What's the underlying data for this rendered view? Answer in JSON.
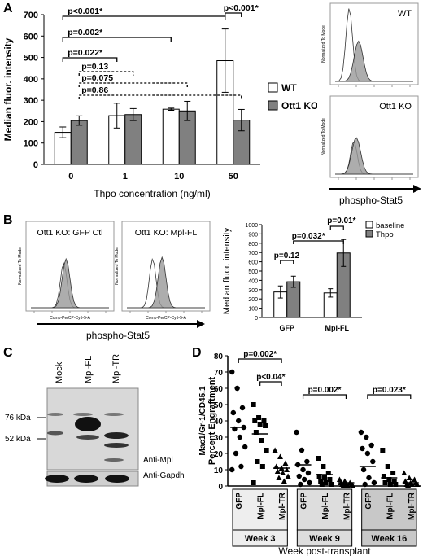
{
  "panels": {
    "A": {
      "letter": "A",
      "chart_data": {
        "type": "bar",
        "ylabel": "Median fluor. intensity",
        "xlabel": "Thpo concentration (ng/ml)",
        "categories": [
          "0",
          "1",
          "10",
          "50"
        ],
        "ylim": [
          0,
          700
        ],
        "yticks": [
          "0",
          "100",
          "200",
          "300",
          "400",
          "500",
          "600",
          "700"
        ],
        "series": [
          {
            "name": "WT",
            "color": "#ffffff",
            "values": [
              150,
              228,
              258,
              485
            ],
            "errors": [
              25,
              58,
              5,
              148
            ]
          },
          {
            "name": "Ott1 KO",
            "color": "#808080",
            "values": [
              205,
              233,
              250,
              207
            ],
            "errors": [
              22,
              28,
              45,
              50
            ]
          }
        ],
        "legend_position": "right",
        "annotations": [
          {
            "text": "p<0.001*",
            "from": "WT-0",
            "to": "WT-50",
            "style": "solid"
          },
          {
            "text": "p=0.002*",
            "from": "WT-0",
            "to": "WT-10",
            "style": "solid"
          },
          {
            "text": "p=0.022*",
            "from": "WT-0",
            "to": "WT-1",
            "style": "solid"
          },
          {
            "text": "p=0.13",
            "from": "KO-0",
            "to": "KO-1",
            "style": "dashed"
          },
          {
            "text": "p=0.075",
            "from": "KO-0",
            "to": "KO-10",
            "style": "dashed"
          },
          {
            "text": "p=0.86",
            "from": "KO-0",
            "to": "KO-50",
            "style": "dashed"
          },
          {
            "text": "p<0.001*",
            "from": "WT-50",
            "to": "KO-50",
            "style": "solid"
          }
        ]
      },
      "histograms": {
        "wt_label": "WT",
        "ko_label": "Ott1 KO",
        "axis_label": "phospho-Stat5",
        "y_axis_text": "Normalized To Mode"
      }
    },
    "B": {
      "letter": "B",
      "histograms": {
        "left_title": "Ott1 KO: GFP Ctl",
        "right_title": "Ott1 KO: Mpl-FL",
        "axis_label": "phospho-Stat5",
        "x_axis_text": "Comp-PerCP-Cy5-5-A",
        "y_axis_text": "Normalized To Mode"
      },
      "chart_data": {
        "type": "bar",
        "ylabel": "Median fluor. intensity",
        "categories": [
          "GFP",
          "Mpl-FL"
        ],
        "ylim": [
          0,
          1000
        ],
        "yticks": [
          "0",
          "100",
          "200",
          "300",
          "400",
          "500",
          "600",
          "700",
          "800",
          "900",
          "1000"
        ],
        "series": [
          {
            "name": "baseline",
            "color": "#ffffff",
            "values": [
              275,
              265
            ],
            "errors": [
              65,
              45
            ]
          },
          {
            "name": "Thpo",
            "color": "#808080",
            "values": [
              385,
              695
            ],
            "errors": [
              60,
              145
            ]
          }
        ],
        "legend_position": "top-right",
        "annotations": [
          {
            "text": "p=0.12",
            "group": "GFP"
          },
          {
            "text": "p=0.01*",
            "group": "Mpl-FL"
          },
          {
            "text": "p=0.032*",
            "from": "GFP-Thpo",
            "to": "Mpl-FL-Thpo"
          }
        ]
      }
    },
    "C": {
      "letter": "C",
      "lanes": [
        "Mock",
        "Mpl-FL",
        "Mpl-TR"
      ],
      "markers": [
        "76 kDa",
        "52 kDa"
      ],
      "blot_labels": [
        "Anti-Mpl",
        "Anti-Gapdh"
      ]
    },
    "D": {
      "letter": "D",
      "chart_data": {
        "type": "scatter",
        "ylabel_lines": [
          "Mac1/Gr-1/CD45.1",
          "Percent Engraftment"
        ],
        "xlabel": "Week post-transplant",
        "ylim": [
          0,
          80
        ],
        "yticks": [
          "0",
          "10",
          "20",
          "30",
          "40",
          "50",
          "60",
          "70",
          "80"
        ],
        "groups": [
          {
            "week": "Week 3",
            "categories": [
              "GFP",
              "Mpl-FL",
              "Mpl-TR"
            ],
            "points": [
              [
                70,
                60,
                48,
                45,
                40,
                36,
                35,
                30,
                24,
                20,
                12,
                10
              ],
              [
                50,
                42,
                40,
                40,
                38,
                37,
                33,
                28,
                22,
                15,
                12,
                2
              ],
              [
                22,
                18,
                14,
                12,
                11,
                10,
                9,
                8,
                6,
                5,
                3
              ]
            ],
            "means": [
              36,
              32,
              11
            ]
          },
          {
            "week": "Week 9",
            "categories": [
              "GFP",
              "Mpl-FL",
              "Mpl-TR"
            ],
            "points": [
              [
                33,
                22,
                15,
                13,
                10,
                8,
                6,
                4,
                2,
                1
              ],
              [
                17,
                12,
                8,
                6,
                5,
                4,
                3,
                2,
                1,
                1
              ],
              [
                4,
                3,
                2,
                2,
                1,
                1,
                1,
                0.5,
                0.5,
                0.5
              ]
            ],
            "means": [
              13,
              7,
              2
            ]
          },
          {
            "week": "Week 16",
            "categories": [
              "GFP",
              "Mpl-FL",
              "Mpl-TR"
            ],
            "points": [
              [
                33,
                30,
                25,
                23,
                20,
                15,
                10,
                5,
                2,
                1
              ],
              [
                22,
                12,
                8,
                6,
                4,
                3,
                2,
                1,
                1
              ],
              [
                8,
                5,
                4,
                3,
                2,
                2,
                1,
                1,
                1,
                0.5
              ]
            ],
            "means": [
              12,
              5,
              2
            ]
          }
        ],
        "annotations": [
          {
            "text": "p=0.002*",
            "group": "Week 3",
            "from": "GFP",
            "to": "Mpl-TR"
          },
          {
            "text": "p<0.04*",
            "group": "Week 3",
            "from": "Mpl-FL",
            "to": "Mpl-TR"
          },
          {
            "text": "p=0.002*",
            "group": "Week 9",
            "from": "GFP",
            "to": "Mpl-TR"
          },
          {
            "text": "p=0.023*",
            "group": "Week 16",
            "from": "GFP",
            "to": "Mpl-TR"
          }
        ]
      }
    }
  }
}
